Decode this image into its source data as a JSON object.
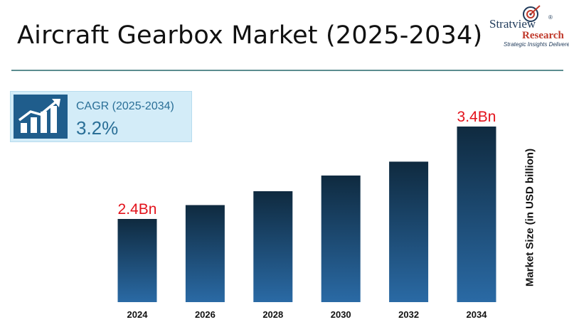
{
  "title": "Aircraft Gearbox Market (2025-2034)",
  "logo": {
    "name": "Stratview",
    "name2": "Research",
    "registered": "®",
    "tagline": "Strategic Insights Delivered"
  },
  "cagr": {
    "label": "CAGR (2025-2034)",
    "value": "3.2%"
  },
  "colors": {
    "bar_top": "#0f2a3f",
    "bar_bottom": "#2a6aa5",
    "value_label": "#e3121b",
    "rule": "#5b8d90"
  },
  "chart_data": {
    "type": "bar",
    "categories": [
      "2024",
      "2026",
      "2028",
      "2030",
      "2032",
      "2034"
    ],
    "values": [
      2.4,
      2.55,
      2.7,
      2.87,
      3.02,
      3.4
    ],
    "data_labels": [
      "2.4Bn",
      "",
      "",
      "",
      "",
      "3.4Bn"
    ],
    "title": "",
    "xlabel": "",
    "ylabel": "Market Size (in USD billion)",
    "ylim": [
      1.5,
      3.4
    ],
    "grid": false,
    "legend": "none"
  }
}
